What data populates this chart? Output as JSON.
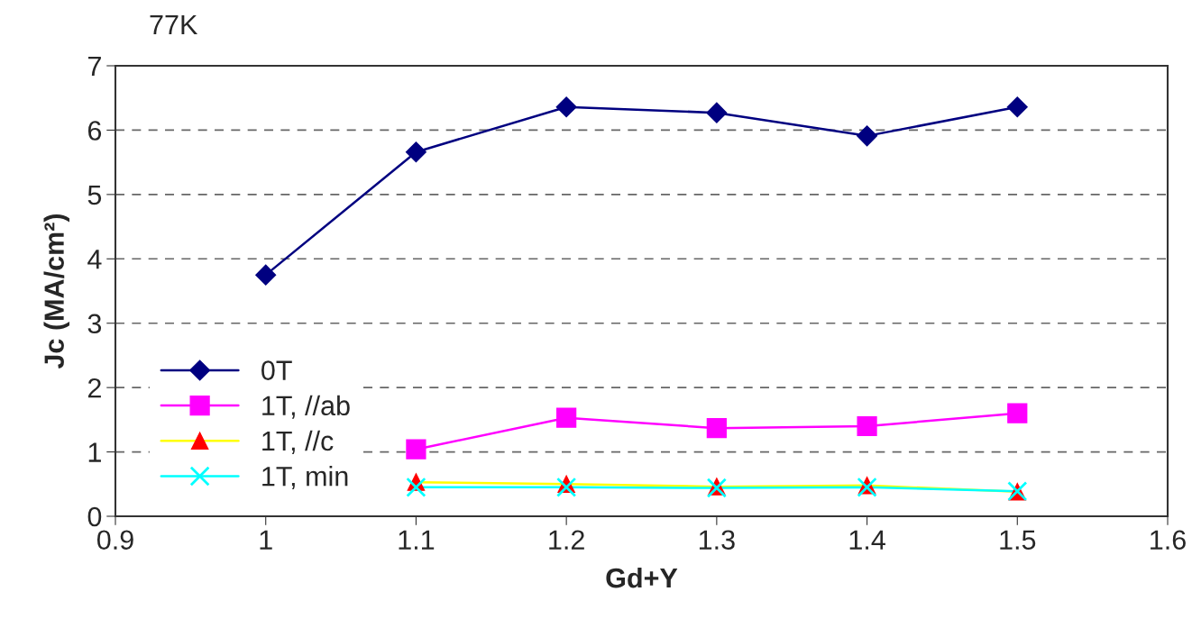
{
  "chart_data": {
    "type": "line",
    "title": "77K",
    "xlabel": "Gd+Y",
    "ylabel": "Jc (MA/cm²)",
    "x": [
      1.0,
      1.1,
      1.2,
      1.3,
      1.4,
      1.5
    ],
    "series": [
      {
        "name": "0T",
        "color": "#000080",
        "marker": "diamond",
        "values": [
          3.75,
          5.66,
          6.36,
          6.27,
          5.91,
          6.36
        ]
      },
      {
        "name": "1T, //ab",
        "color": "#ff00ff",
        "marker": "square",
        "values": [
          null,
          1.04,
          1.53,
          1.37,
          1.4,
          1.6
        ]
      },
      {
        "name": "1T, //c",
        "color": "#ffff00",
        "marker": "triangle",
        "colors": [
          null,
          "#ff0000",
          "#ff0000",
          "#ff0000",
          "#ff0000",
          "#ff0000"
        ],
        "values": [
          null,
          0.53,
          0.5,
          0.46,
          0.48,
          0.38
        ]
      },
      {
        "name": "1T, min",
        "color": "#00ffff",
        "marker": "cross",
        "values": [
          null,
          0.45,
          0.45,
          0.44,
          0.45,
          0.39
        ]
      }
    ],
    "xlim": [
      0.9,
      1.6
    ],
    "xticks": [
      0.9,
      1,
      1.1,
      1.2,
      1.3,
      1.4,
      1.5,
      1.6
    ],
    "ylim": [
      0,
      7
    ],
    "yticks": [
      0,
      1,
      2,
      3,
      4,
      5,
      6,
      7
    ],
    "grid": "y",
    "legend": "bottom left",
    "line_style": "solid"
  }
}
